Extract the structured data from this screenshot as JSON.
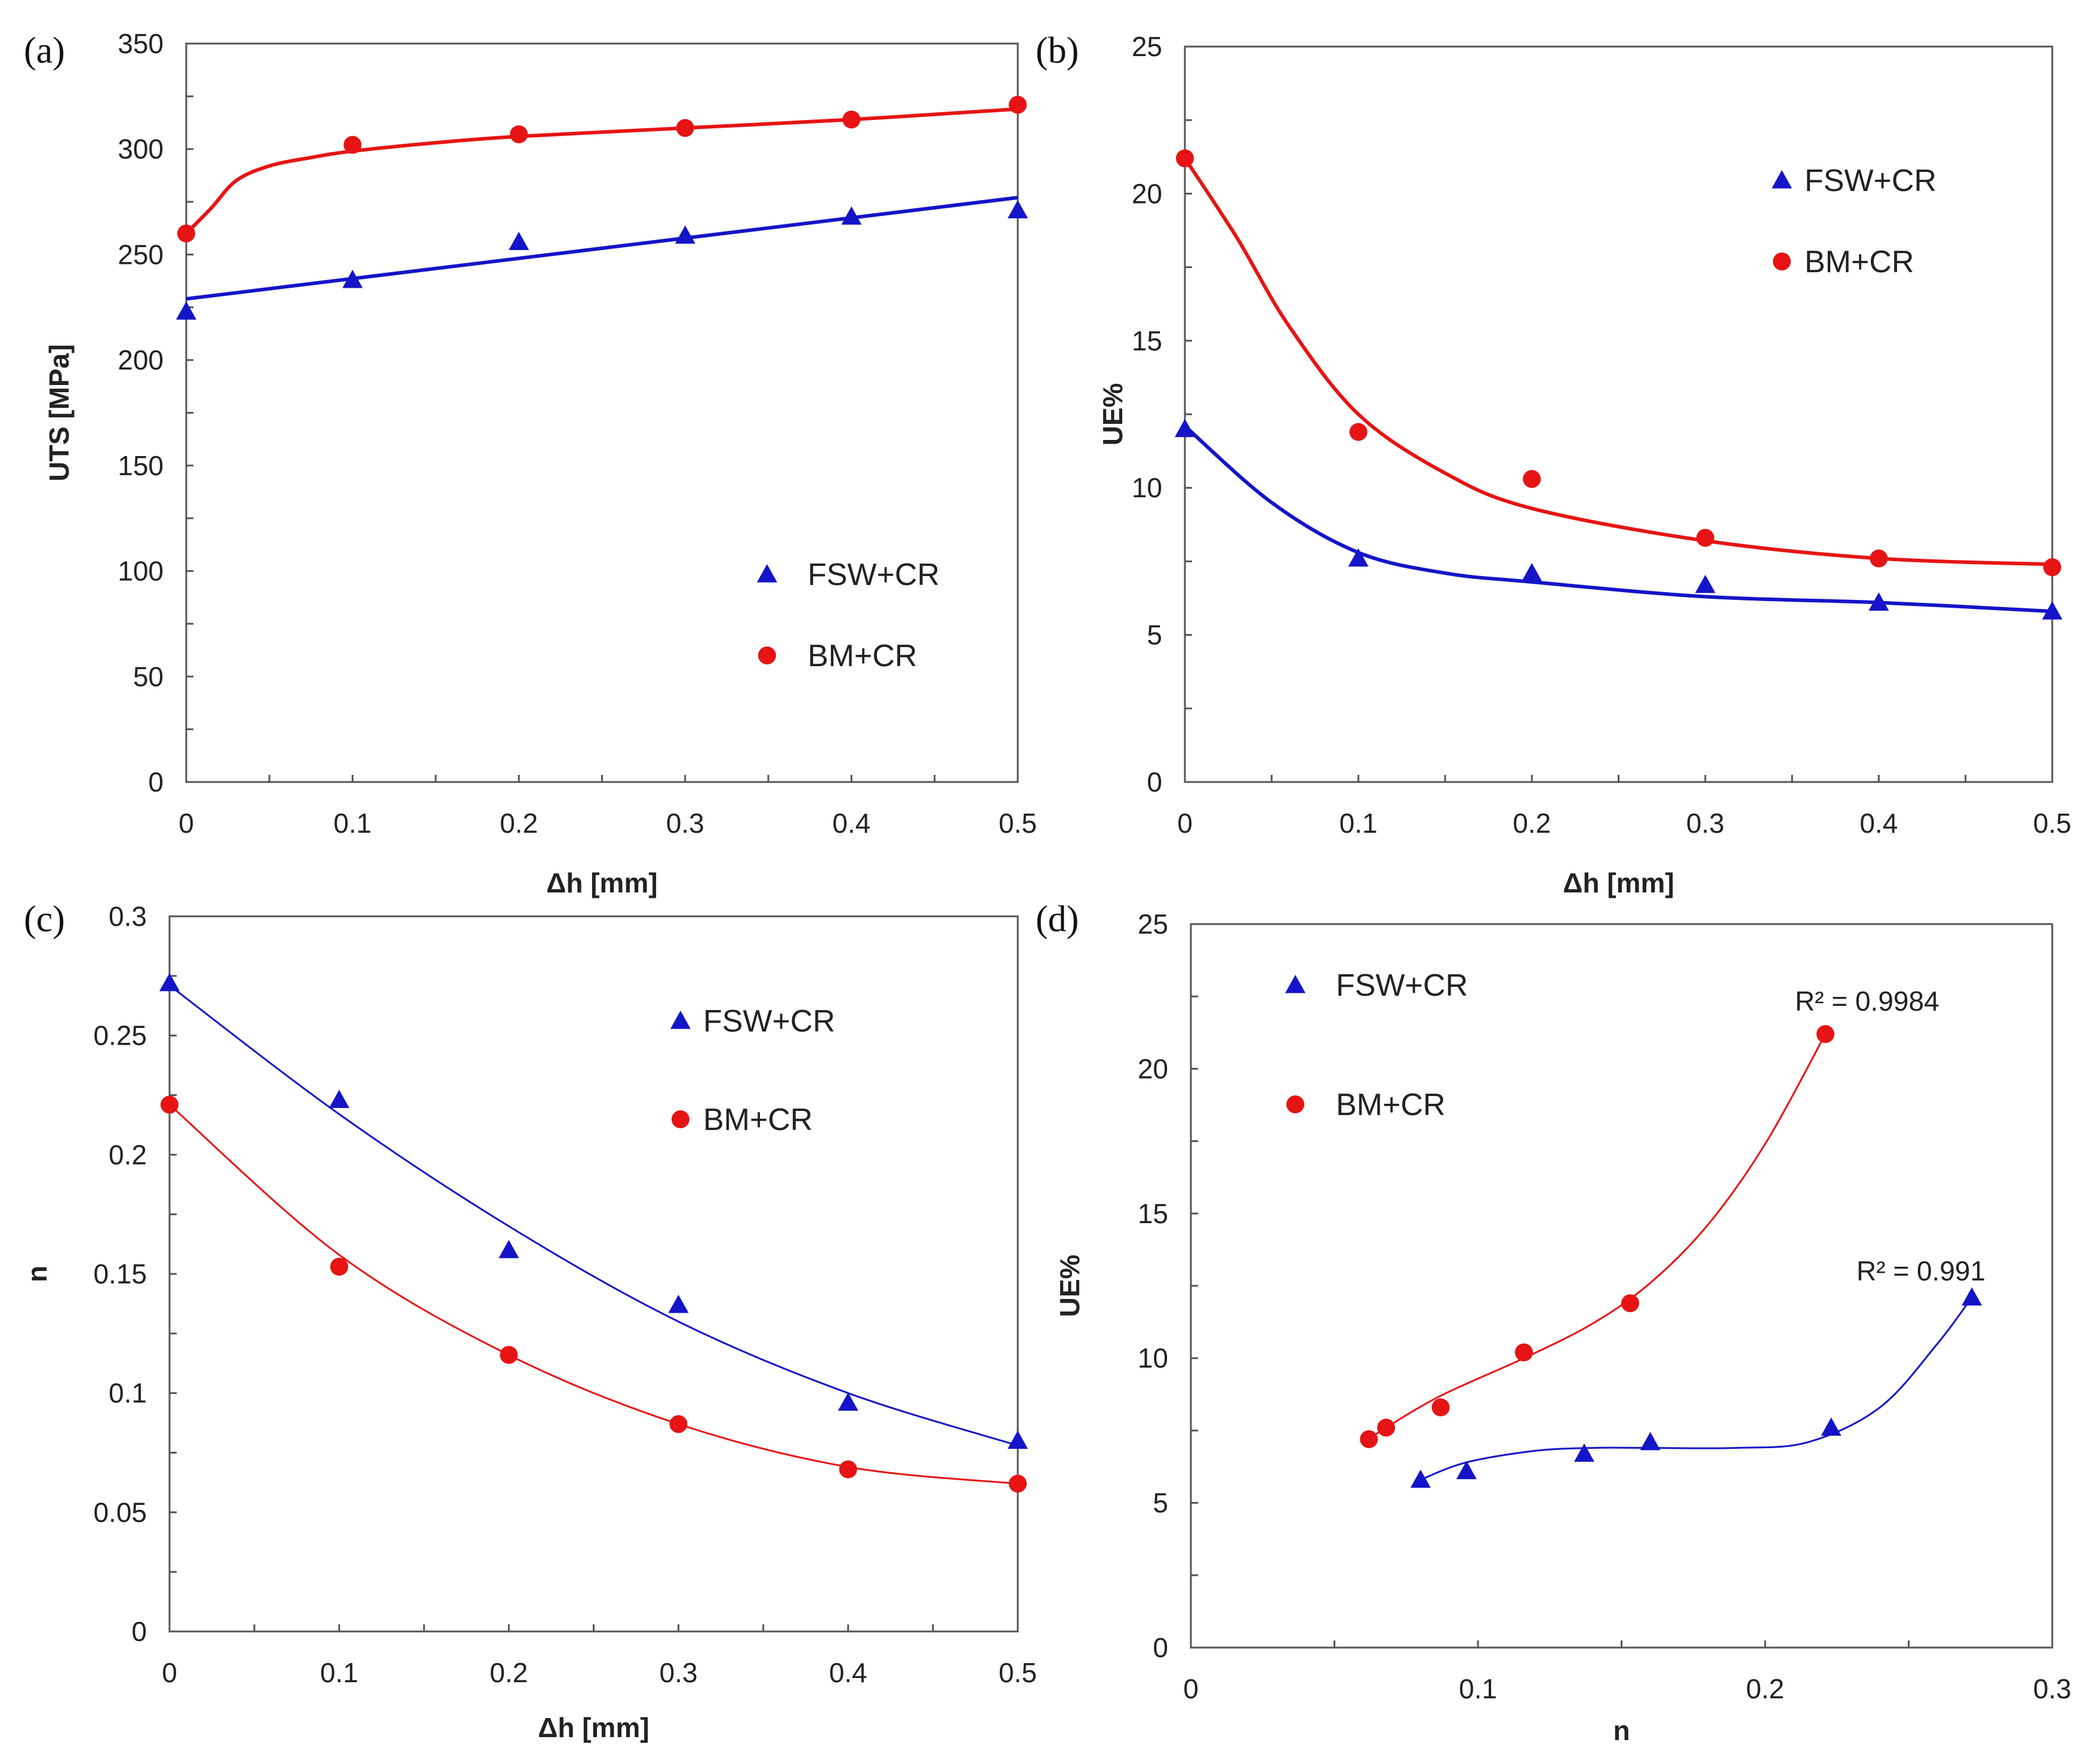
{
  "chart_data": [
    {
      "panel": "(a)",
      "type": "scatter",
      "xlabel": "Δh [mm]",
      "ylabel": "UTS [MPa]",
      "xlim": [
        0,
        0.5
      ],
      "ylim": [
        0,
        350
      ],
      "xticks": [
        0,
        0.1,
        0.2,
        0.3,
        0.4,
        0.5
      ],
      "xtick_labels": [
        "0",
        "0.1",
        "0.2",
        "0.3",
        "0.4",
        "0.5"
      ],
      "yticks": [
        0,
        50,
        100,
        150,
        200,
        250,
        300,
        350
      ],
      "ytick_labels": [
        "0",
        "50",
        "100",
        "150",
        "200",
        "250",
        "300",
        "350"
      ],
      "legend_position": "lower-right",
      "series": [
        {
          "name": "FSW+CR",
          "marker": "triangle",
          "color": "#1414c8",
          "x": [
            0,
            0.1,
            0.2,
            0.3,
            0.4,
            0.5
          ],
          "y": [
            223,
            238,
            256,
            259,
            268,
            271
          ],
          "fit_x": [
            0,
            0.5
          ],
          "fit_y": [
            229,
            277
          ]
        },
        {
          "name": "BM+CR",
          "marker": "circle",
          "color": "#e61414",
          "x": [
            0,
            0.1,
            0.2,
            0.3,
            0.4,
            0.5
          ],
          "y": [
            260,
            302,
            307,
            310,
            314,
            321
          ],
          "fit_x": [
            0,
            0.015,
            0.03,
            0.05,
            0.075,
            0.1,
            0.15,
            0.2,
            0.3,
            0.4,
            0.5
          ],
          "fit_y": [
            260,
            272,
            285,
            292,
            296,
            299,
            303,
            306,
            310,
            314,
            319
          ]
        }
      ]
    },
    {
      "panel": "(b)",
      "type": "scatter",
      "xlabel": "Δh [mm]",
      "ylabel": "UE%",
      "xlim": [
        0,
        0.5
      ],
      "ylim": [
        0,
        25
      ],
      "xticks": [
        0,
        0.1,
        0.2,
        0.3,
        0.4,
        0.5
      ],
      "xtick_labels": [
        "0",
        "0.1",
        "0.2",
        "0.3",
        "0.4",
        "0.5"
      ],
      "yticks": [
        0,
        5,
        10,
        15,
        20,
        25
      ],
      "ytick_labels": [
        "0",
        "5",
        "10",
        "15",
        "20",
        "25"
      ],
      "legend_position": "upper-right",
      "series": [
        {
          "name": "FSW+CR",
          "marker": "triangle",
          "color": "#1414c8",
          "x": [
            0,
            0.1,
            0.2,
            0.3,
            0.4,
            0.5
          ],
          "y": [
            12.0,
            7.6,
            7.1,
            6.7,
            6.1,
            5.8
          ],
          "fit_x": [
            0,
            0.05,
            0.1,
            0.15,
            0.2,
            0.3,
            0.4,
            0.5
          ],
          "fit_y": [
            12.1,
            9.5,
            7.8,
            7.1,
            6.8,
            6.3,
            6.1,
            5.8
          ]
        },
        {
          "name": "BM+CR",
          "marker": "circle",
          "color": "#e61414",
          "x": [
            0,
            0.1,
            0.2,
            0.3,
            0.4,
            0.5
          ],
          "y": [
            21.2,
            11.9,
            10.3,
            8.3,
            7.6,
            7.3
          ],
          "fit_x": [
            0,
            0.03,
            0.06,
            0.1,
            0.15,
            0.2,
            0.3,
            0.4,
            0.5
          ],
          "fit_y": [
            21.2,
            18.5,
            15.5,
            12.5,
            10.5,
            9.3,
            8.2,
            7.6,
            7.4
          ]
        }
      ]
    },
    {
      "panel": "(c)",
      "type": "scatter",
      "xlabel": "Δh [mm]",
      "ylabel": "n",
      "xlim": [
        0,
        0.5
      ],
      "ylim": [
        0,
        0.3
      ],
      "xticks": [
        0,
        0.1,
        0.2,
        0.3,
        0.4,
        0.5
      ],
      "xtick_labels": [
        "0",
        "0.1",
        "0.2",
        "0.3",
        "0.4",
        "0.5"
      ],
      "yticks": [
        0,
        0.05,
        0.1,
        0.15,
        0.2,
        0.25,
        0.3
      ],
      "ytick_labels": [
        "0",
        "0.05",
        "0.1",
        "0.15",
        "0.2",
        "0.25",
        "0.3"
      ],
      "legend_position": "upper-right",
      "series": [
        {
          "name": "FSW+CR",
          "marker": "triangle",
          "color": "#1414c8",
          "x": [
            0,
            0.1,
            0.2,
            0.3,
            0.4,
            0.5
          ],
          "y": [
            0.272,
            0.223,
            0.16,
            0.137,
            0.096,
            0.08
          ],
          "fit_x": [
            0,
            0.1,
            0.2,
            0.3,
            0.4,
            0.5
          ],
          "fit_y": [
            0.271,
            0.217,
            0.17,
            0.13,
            0.1,
            0.078
          ]
        },
        {
          "name": "BM+CR",
          "marker": "circle",
          "color": "#e61414",
          "x": [
            0,
            0.1,
            0.2,
            0.3,
            0.4,
            0.5
          ],
          "y": [
            0.221,
            0.153,
            0.116,
            0.087,
            0.068,
            0.062
          ],
          "fit_x": [
            0,
            0.1,
            0.2,
            0.3,
            0.4,
            0.5
          ],
          "fit_y": [
            0.221,
            0.158,
            0.116,
            0.087,
            0.069,
            0.062
          ]
        }
      ]
    },
    {
      "panel": "(d)",
      "type": "scatter",
      "xlabel": "n",
      "ylabel": "UE%",
      "xlim": [
        0,
        0.3
      ],
      "ylim": [
        0,
        25
      ],
      "xticks": [
        0,
        0.1,
        0.2,
        0.3
      ],
      "xtick_labels": [
        "0",
        "0.1",
        "0.2",
        "0.3"
      ],
      "yticks": [
        0,
        5,
        10,
        15,
        20,
        25
      ],
      "ytick_labels": [
        "0",
        "5",
        "10",
        "15",
        "20",
        "25"
      ],
      "legend_position": "upper-left",
      "series": [
        {
          "name": "FSW+CR",
          "marker": "triangle",
          "color": "#1414c8",
          "x": [
            0.08,
            0.096,
            0.137,
            0.16,
            0.223,
            0.272
          ],
          "y": [
            5.8,
            6.1,
            6.7,
            7.1,
            7.6,
            12.1
          ],
          "fit_x": [
            0.08,
            0.096,
            0.12,
            0.14,
            0.16,
            0.19,
            0.215,
            0.24,
            0.26,
            0.272
          ],
          "fit_y": [
            5.8,
            6.4,
            6.8,
            6.9,
            6.9,
            6.9,
            7.1,
            8.3,
            10.5,
            12.1
          ],
          "annotation": "R² = 0.991"
        },
        {
          "name": "BM+CR",
          "marker": "circle",
          "color": "#e61414",
          "x": [
            0.062,
            0.068,
            0.087,
            0.116,
            0.153,
            0.221
          ],
          "y": [
            7.2,
            7.6,
            8.3,
            10.2,
            11.9,
            21.2
          ],
          "fit_x": [
            0.062,
            0.068,
            0.087,
            0.116,
            0.14,
            0.16,
            0.18,
            0.2,
            0.221
          ],
          "fit_y": [
            7.2,
            7.6,
            8.7,
            10.0,
            11.2,
            12.6,
            14.6,
            17.4,
            21.2
          ],
          "annotation": "R² = 0.9984"
        }
      ]
    }
  ]
}
